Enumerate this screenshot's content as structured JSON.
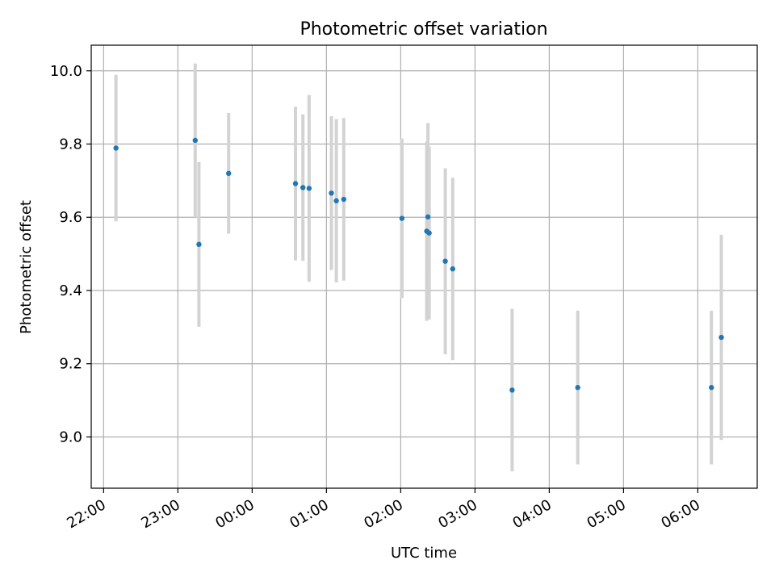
{
  "chart_data": {
    "type": "scatter",
    "title": "Photometric offset variation",
    "xlabel": "UTC time",
    "ylabel": "Photometric offset",
    "x_tick_labels": [
      "22:00",
      "23:00",
      "00:00",
      "01:00",
      "02:00",
      "03:00",
      "04:00",
      "05:00",
      "06:00"
    ],
    "y_tick_labels": [
      "9.0",
      "9.2",
      "9.4",
      "9.6",
      "9.8",
      "10.0"
    ],
    "y_ticks": [
      9.0,
      9.2,
      9.4,
      9.6,
      9.8,
      10.0
    ],
    "xlim": [
      "21:50",
      "06:48"
    ],
    "ylim": [
      8.86,
      10.07
    ],
    "grid": true,
    "point_color": "#1f77b4",
    "errorbar_color": "#d3d3d3",
    "points": [
      {
        "t": "22:10",
        "y": 9.789,
        "err": 0.2
      },
      {
        "t": "23:14",
        "y": 9.81,
        "err": 0.21
      },
      {
        "t": "23:17",
        "y": 9.526,
        "err": 0.225
      },
      {
        "t": "23:41",
        "y": 9.72,
        "err": 0.165
      },
      {
        "t": "00:35",
        "y": 9.692,
        "err": 0.21
      },
      {
        "t": "00:41",
        "y": 9.681,
        "err": 0.2
      },
      {
        "t": "00:46",
        "y": 9.679,
        "err": 0.255
      },
      {
        "t": "01:04",
        "y": 9.666,
        "err": 0.21
      },
      {
        "t": "01:08",
        "y": 9.645,
        "err": 0.223
      },
      {
        "t": "01:14",
        "y": 9.649,
        "err": 0.222
      },
      {
        "t": "02:01",
        "y": 9.597,
        "err": 0.218
      },
      {
        "t": "02:21",
        "y": 9.562,
        "err": 0.245
      },
      {
        "t": "02:22",
        "y": 9.601,
        "err": 0.256
      },
      {
        "t": "02:23",
        "y": 9.557,
        "err": 0.236
      },
      {
        "t": "02:36",
        "y": 9.48,
        "err": 0.254
      },
      {
        "t": "02:42",
        "y": 9.459,
        "err": 0.249
      },
      {
        "t": "03:30",
        "y": 9.128,
        "err": 0.222
      },
      {
        "t": "04:23",
        "y": 9.135,
        "err": 0.21
      },
      {
        "t": "06:11",
        "y": 9.135,
        "err": 0.21
      },
      {
        "t": "06:19",
        "y": 9.272,
        "err": 0.28
      }
    ]
  }
}
